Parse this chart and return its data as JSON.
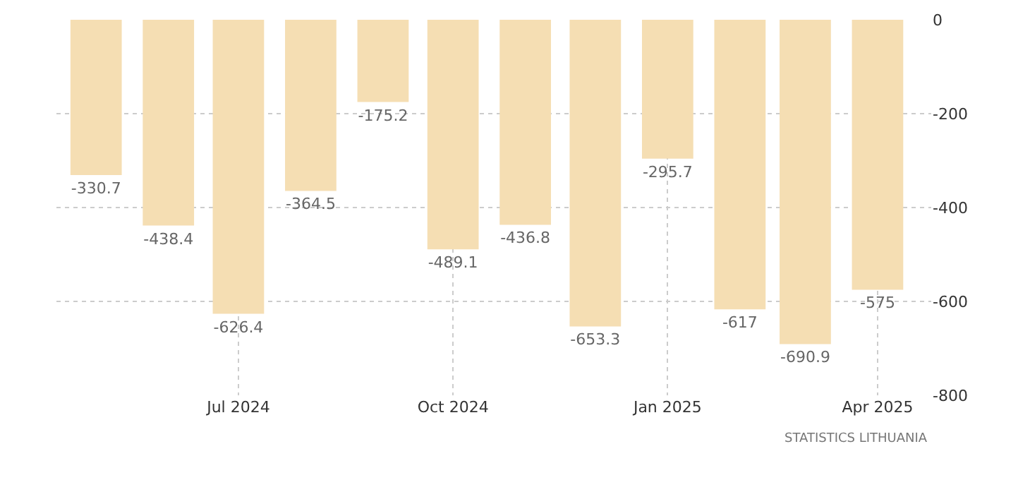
{
  "chart_data": {
    "type": "bar",
    "x": [
      "2024-05",
      "2024-06",
      "2024-07",
      "2024-08",
      "2024-09",
      "2024-10",
      "2024-11",
      "2024-12",
      "2025-01",
      "2025-02",
      "2025-03",
      "2025-04"
    ],
    "values": [
      -330.7,
      -438.4,
      -626.4,
      -364.5,
      -175.2,
      -489.1,
      -436.8,
      -653.3,
      -295.7,
      -617,
      -690.9,
      -575
    ],
    "color": "#f5deb3",
    "data_labels": true,
    "xlim": [
      "2024-04-14",
      "2025-04-24"
    ],
    "xticks": [
      {
        "value": "2024-07",
        "label": "Jul 2024"
      },
      {
        "value": "2024-10",
        "label": "Oct 2024"
      },
      {
        "value": "2025-01",
        "label": "Jan 2025"
      },
      {
        "value": "2025-04",
        "label": "Apr 2025"
      }
    ],
    "ylim": [
      -800,
      0
    ],
    "yticks": [
      0,
      -200,
      -400,
      -600,
      -800
    ],
    "grid": true,
    "annotations": [
      "STATISTICS LITHUANIA"
    ]
  }
}
